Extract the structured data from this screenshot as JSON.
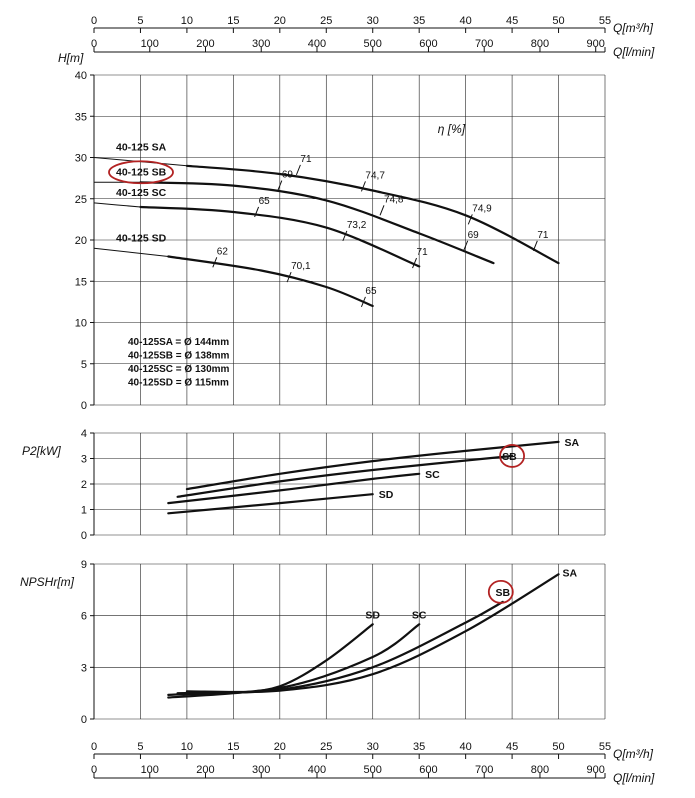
{
  "chart_data": [
    {
      "panel": "head",
      "type": "line",
      "ylabel": "H[m]",
      "ylim": [
        0,
        40
      ],
      "yticks": [
        0,
        5,
        10,
        15,
        20,
        25,
        30,
        35,
        40
      ],
      "xlim_m3h": [
        0,
        55
      ],
      "efficiency_label": "η [%]",
      "series": [
        {
          "name": "40-125 SA",
          "x": [
            0,
            10,
            20,
            30,
            40,
            50
          ],
          "y": [
            30,
            29,
            28,
            26,
            23,
            17.2
          ]
        },
        {
          "name": "40-125 SB",
          "x": [
            0,
            5,
            15,
            25,
            35,
            43
          ],
          "y": [
            27,
            27,
            26.6,
            24.8,
            20.8,
            17.2
          ]
        },
        {
          "name": "40-125 SC",
          "x": [
            0,
            5,
            15,
            25,
            35
          ],
          "y": [
            24.5,
            24,
            23.4,
            21.5,
            16.8
          ]
        },
        {
          "name": "40-125 SD",
          "x": [
            0,
            8,
            18,
            25,
            30
          ],
          "y": [
            19,
            18,
            16.3,
            14.3,
            12
          ]
        }
      ],
      "efficiency_marks": [
        {
          "label": "71",
          "x": 22,
          "y": 28.5
        },
        {
          "label": "74,7",
          "x": 29,
          "y": 26.5
        },
        {
          "label": "74,9",
          "x": 40.5,
          "y": 22.5
        },
        {
          "label": "71",
          "x": 47.5,
          "y": 19.3
        },
        {
          "label": "69",
          "x": 20,
          "y": 26.6
        },
        {
          "label": "74,8",
          "x": 31,
          "y": 23.6
        },
        {
          "label": "69",
          "x": 40,
          "y": 19.3
        },
        {
          "label": "65",
          "x": 17.5,
          "y": 23.4
        },
        {
          "label": "73,2",
          "x": 27,
          "y": 20.5
        },
        {
          "label": "71",
          "x": 34.5,
          "y": 17.2
        },
        {
          "label": "62",
          "x": 13,
          "y": 17.3
        },
        {
          "label": "70,1",
          "x": 21,
          "y": 15.5
        },
        {
          "label": "65",
          "x": 29,
          "y": 12.5
        }
      ],
      "diameters": [
        "40-125SA = Ø 144mm",
        "40-125SB = Ø 138mm",
        "40-125SC = Ø 130mm",
        "40-125SD = Ø 115mm"
      ]
    },
    {
      "panel": "power",
      "type": "line",
      "ylabel": "P2[kW]",
      "ylim": [
        0,
        4
      ],
      "yticks": [
        0,
        1,
        2,
        3,
        4
      ],
      "series": [
        {
          "name": "SA",
          "x": [
            10,
            20,
            30,
            40,
            50
          ],
          "y": [
            1.8,
            2.4,
            2.9,
            3.3,
            3.65
          ]
        },
        {
          "name": "SB",
          "x": [
            9,
            20,
            30,
            45
          ],
          "y": [
            1.5,
            2.1,
            2.55,
            3.1
          ]
        },
        {
          "name": "SC",
          "x": [
            8,
            20,
            30,
            35
          ],
          "y": [
            1.25,
            1.75,
            2.2,
            2.4
          ]
        },
        {
          "name": "SD",
          "x": [
            8,
            20,
            30
          ],
          "y": [
            0.85,
            1.25,
            1.6
          ]
        }
      ]
    },
    {
      "panel": "npshr",
      "type": "line",
      "ylabel": "NPSHr[m]",
      "ylim": [
        0,
        9
      ],
      "yticks": [
        0,
        3,
        6,
        9
      ],
      "series": [
        {
          "name": "SA",
          "x": [
            10,
            20,
            30,
            40,
            50
          ],
          "y": [
            1.6,
            1.65,
            2.6,
            5.1,
            8.4
          ]
        },
        {
          "name": "SB",
          "x": [
            9,
            20,
            30,
            40,
            44
          ],
          "y": [
            1.5,
            1.7,
            3.0,
            5.6,
            6.8
          ]
        },
        {
          "name": "SC",
          "x": [
            8,
            20,
            30,
            35
          ],
          "y": [
            1.4,
            1.8,
            3.6,
            5.5
          ]
        },
        {
          "name": "SD",
          "x": [
            8,
            15,
            20,
            25,
            30
          ],
          "y": [
            1.25,
            1.5,
            1.9,
            3.4,
            5.5
          ]
        }
      ]
    }
  ],
  "axes": {
    "q_m3h_label": "Q[m³/h]",
    "q_lmin_label": "Q[l/min]",
    "q_m3h_ticks": [
      0,
      5,
      10,
      15,
      20,
      25,
      30,
      35,
      40,
      45,
      50,
      55
    ],
    "q_lmin_ticks": [
      0,
      100,
      200,
      300,
      400,
      500,
      600,
      700,
      800,
      900
    ]
  },
  "highlight": {
    "label": "SB",
    "color": "#b22222"
  }
}
